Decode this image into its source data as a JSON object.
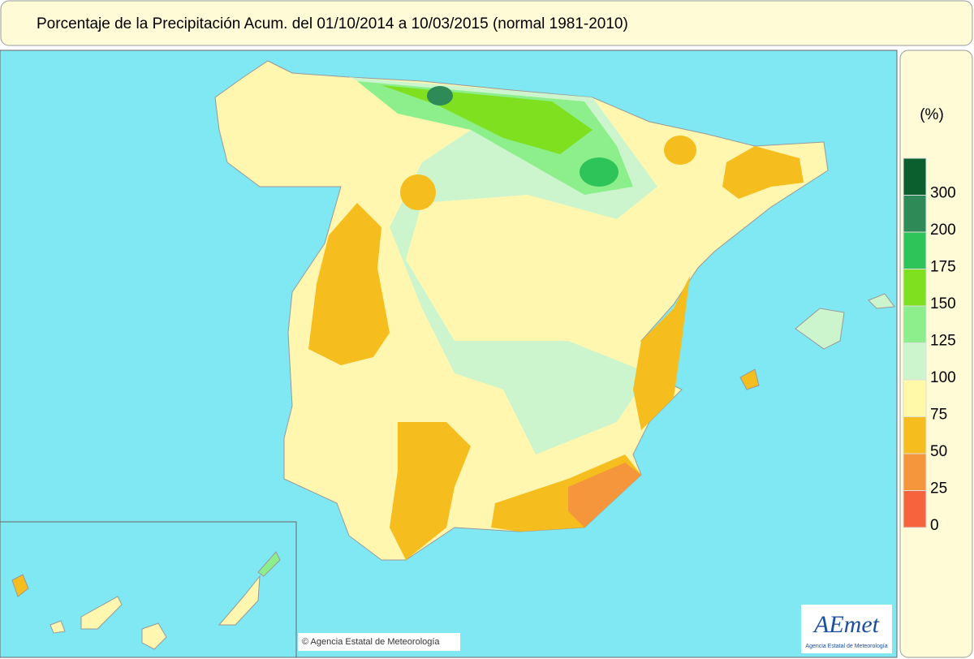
{
  "header": {
    "title": "Porcentaje de la Precipitación Acum. del 01/10/2014 a  10/03/2015  (normal 1981-2010)"
  },
  "legend": {
    "unit": "(%)",
    "items": [
      {
        "label": "300",
        "color": "#0b5e2e"
      },
      {
        "label": "200",
        "color": "#2e8b57"
      },
      {
        "label": "175",
        "color": "#2fc45a"
      },
      {
        "label": "150",
        "color": "#7ee01e"
      },
      {
        "label": "125",
        "color": "#8cef8c"
      },
      {
        "label": "100",
        "color": "#cdf5cd"
      },
      {
        "label": "75",
        "color": "#fff9a8"
      },
      {
        "label": "50",
        "color": "#f5be1e"
      },
      {
        "label": "25",
        "color": "#f6963c"
      },
      {
        "label": "0",
        "color": "#f5643c"
      }
    ]
  },
  "credit": "© Agencia Estatal de Meteorología",
  "logo": {
    "name": "AEmet",
    "subtitle": "Agencia Estatal de Meteorología"
  }
}
